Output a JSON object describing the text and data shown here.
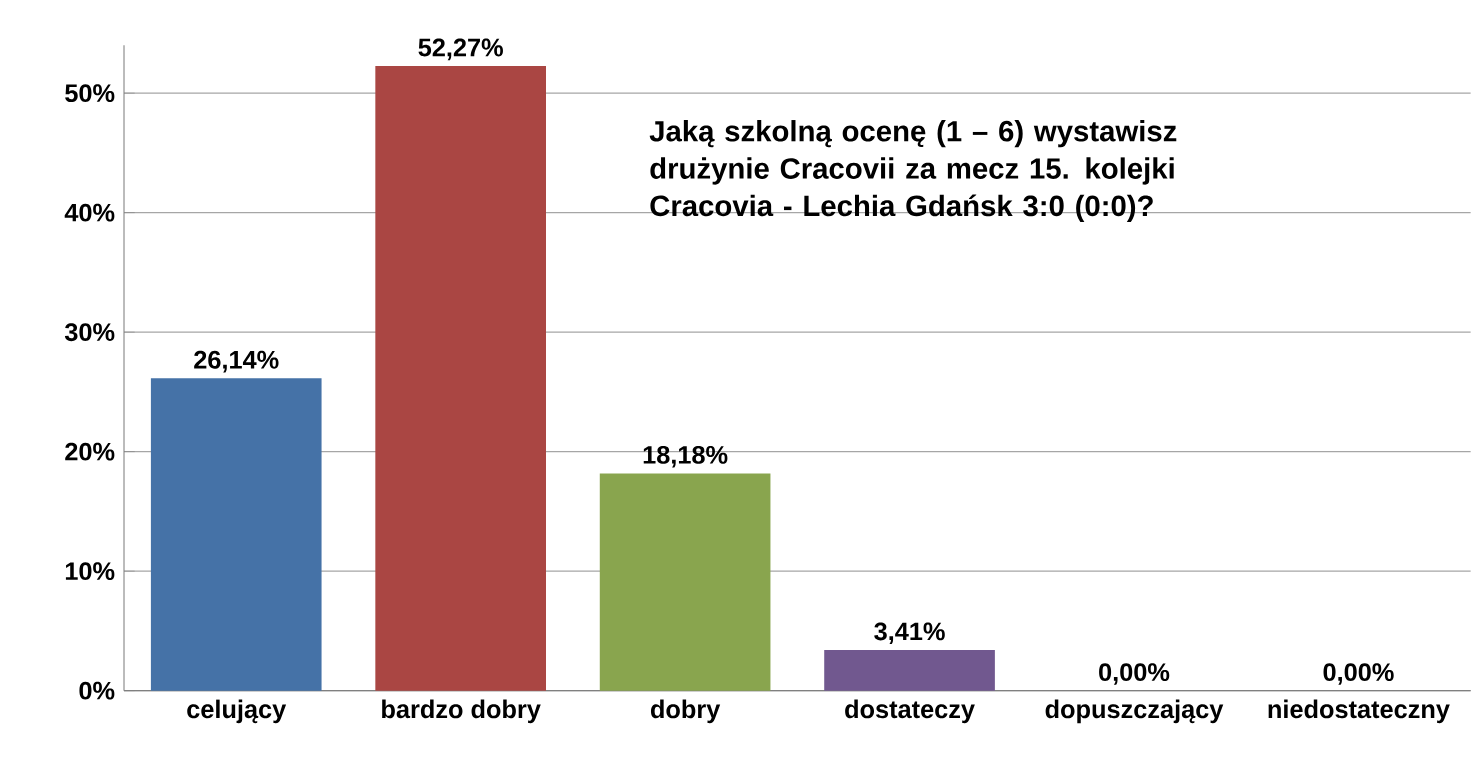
{
  "chart_data": {
    "type": "bar",
    "title": "Jaką szkolną ocenę (1 – 6) wystawisz drużynie Cracovii za mecz 15. kolejki Cracovia - Lechia Gdańsk 3:0 (0:0)?",
    "categories": [
      "celujący",
      "bardzo dobry",
      "dobry",
      "dostateczy",
      "dopuszczający",
      "niedostateczny"
    ],
    "values": [
      26.14,
      52.27,
      18.18,
      3.41,
      0,
      0
    ],
    "value_labels": [
      "26,14%",
      "52,27%",
      "18,18%",
      "3,41%",
      "0,00%",
      "0,00%"
    ],
    "colors": [
      "#4572a7",
      "#aa4643",
      "#89a54e",
      "#71588f",
      "#4198af",
      "#db843d"
    ],
    "ylim": [
      0,
      54
    ],
    "yticks": [
      {
        "value": 0,
        "label": "0%"
      },
      {
        "value": 10,
        "label": "10%"
      },
      {
        "value": 20,
        "label": "20%"
      },
      {
        "value": 30,
        "label": "30%"
      },
      {
        "value": 40,
        "label": "40%"
      },
      {
        "value": 50,
        "label": "50%"
      }
    ],
    "grid": "y"
  }
}
